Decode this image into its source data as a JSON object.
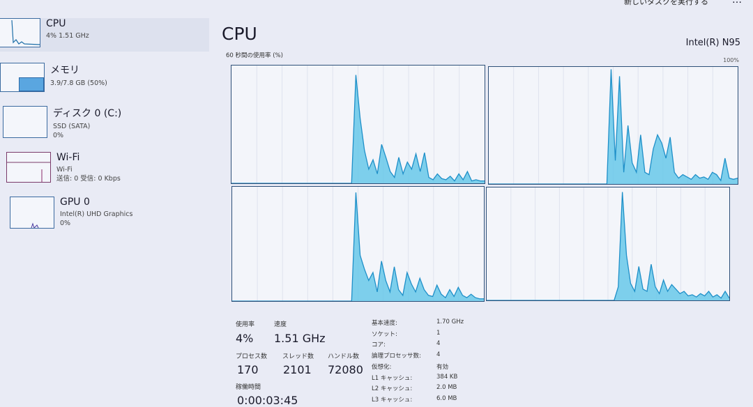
{
  "header": {
    "run_task": "新しいタスクを実行する",
    "more": "…"
  },
  "sidebar": {
    "items": [
      {
        "name": "CPU",
        "sub1": "4% 1.51 GHz",
        "sub2": ""
      },
      {
        "name": "メモリ",
        "sub1": "3.9/7.8 GB (50%)",
        "sub2": ""
      },
      {
        "name": "ディスク 0 (C:)",
        "sub1": "SSD (SATA)",
        "sub2": "0%"
      },
      {
        "name": "Wi-Fi",
        "sub1": "Wi-Fi",
        "sub2": "送信: 0 受信: 0 Kbps"
      },
      {
        "name": "GPU 0",
        "sub1": "Intel(R) UHD Graphics",
        "sub2": "0%"
      }
    ]
  },
  "main": {
    "title": "CPU",
    "model": "Intel(R) N95",
    "graph_label": "60 秒間の使用率 (%)",
    "graph_max": "100%"
  },
  "chart_data": {
    "type": "area",
    "ylim": [
      0,
      100
    ],
    "series": [
      {
        "values": [
          0,
          0,
          0,
          0,
          0,
          0,
          0,
          0,
          0,
          0,
          0,
          0,
          0,
          0,
          0,
          0,
          0,
          0,
          0,
          0,
          0,
          0,
          0,
          0,
          0,
          0,
          0,
          0,
          0,
          92,
          55,
          28,
          12,
          20,
          8,
          33,
          22,
          10,
          5,
          22,
          8,
          18,
          12,
          25,
          10,
          26,
          5,
          3,
          8,
          4,
          3,
          6,
          2,
          8,
          3,
          10,
          2,
          3,
          2,
          2
        ]
      },
      {
        "values": [
          0,
          0,
          0,
          0,
          0,
          0,
          0,
          0,
          0,
          0,
          0,
          0,
          0,
          0,
          0,
          0,
          0,
          0,
          0,
          0,
          0,
          0,
          0,
          0,
          0,
          0,
          0,
          0,
          0,
          98,
          20,
          92,
          10,
          50,
          18,
          10,
          42,
          10,
          8,
          30,
          42,
          35,
          22,
          40,
          10,
          5,
          8,
          6,
          4,
          8,
          5,
          6,
          4,
          10,
          8,
          3,
          22,
          5,
          4,
          5
        ]
      },
      {
        "values": [
          0,
          0,
          0,
          0,
          0,
          0,
          0,
          0,
          0,
          0,
          0,
          0,
          0,
          0,
          0,
          0,
          0,
          0,
          0,
          0,
          0,
          0,
          0,
          0,
          0,
          0,
          0,
          0,
          0,
          95,
          40,
          28,
          18,
          25,
          8,
          35,
          18,
          8,
          30,
          10,
          5,
          25,
          15,
          8,
          20,
          10,
          5,
          4,
          14,
          6,
          3,
          10,
          4,
          12,
          5,
          3,
          6,
          3,
          2,
          2
        ]
      },
      {
        "values": [
          0,
          0,
          0,
          0,
          0,
          0,
          0,
          0,
          0,
          0,
          0,
          0,
          0,
          0,
          0,
          0,
          0,
          0,
          0,
          0,
          0,
          0,
          0,
          0,
          0,
          0,
          0,
          0,
          0,
          0,
          0,
          0,
          12,
          96,
          40,
          15,
          8,
          30,
          10,
          8,
          32,
          12,
          6,
          18,
          8,
          14,
          10,
          6,
          8,
          4,
          5,
          3,
          6,
          4,
          8,
          3,
          5,
          2,
          8,
          2
        ]
      }
    ]
  },
  "stats": {
    "usage_label": "使用率",
    "usage": "4%",
    "speed_label": "速度",
    "speed": "1.51 GHz",
    "proc_label": "プロセス数",
    "proc": "170",
    "thread_label": "スレッド数",
    "thread": "2101",
    "handle_label": "ハンドル数",
    "handle": "72080",
    "uptime_label": "稼働時間",
    "uptime": "0:00:03:45"
  },
  "specs": [
    {
      "k": "基本速度:",
      "v": "1.70 GHz"
    },
    {
      "k": "ソケット:",
      "v": "1"
    },
    {
      "k": "コア:",
      "v": "4"
    },
    {
      "k": "論理プロセッサ数:",
      "v": "4"
    },
    {
      "k": "仮想化:",
      "v": "有効"
    },
    {
      "k": "L1 キャッシュ:",
      "v": "384 KB"
    },
    {
      "k": "L2 キャッシュ:",
      "v": "2.0 MB"
    },
    {
      "k": "L3 キャッシュ:",
      "v": "6.0 MB"
    }
  ],
  "colors": {
    "accent": "#1e8fc8",
    "fill": "#5fc6e8"
  }
}
